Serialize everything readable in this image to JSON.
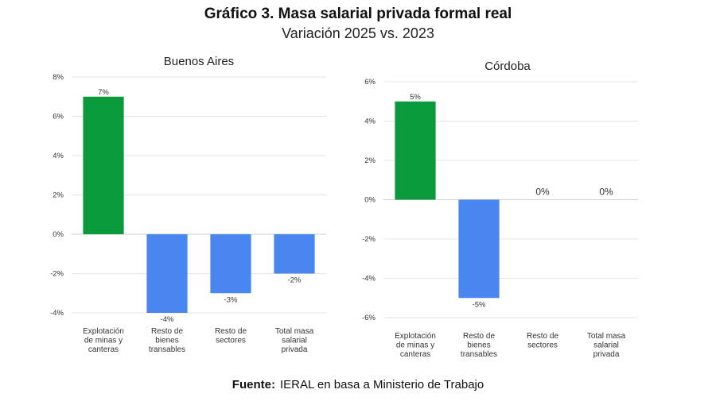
{
  "header": {
    "title": "Gráfico 3. Masa salarial privada formal real",
    "subtitle": "Variación 2025 vs. 2023"
  },
  "footer": {
    "source_label": "Fuente:",
    "source_text": "IERAL en basa a Ministerio de Trabajo"
  },
  "colors": {
    "positive": "#0a9a3c",
    "negative": "#4a86f0",
    "grid": "#e6e6e6",
    "axis": "#cfcfcf"
  },
  "chart_data": [
    {
      "type": "bar",
      "title": "Buenos Aires",
      "categories": [
        [
          "Explotación",
          "de minas y",
          "canteras"
        ],
        [
          "Resto de",
          "bienes",
          "transables"
        ],
        [
          "Resto de",
          "sectores"
        ],
        [
          "Total masa",
          "salarial",
          "privada"
        ]
      ],
      "values": [
        7,
        -4,
        -3,
        -2
      ],
      "data_labels": [
        "7%",
        "-4%",
        "-3%",
        "-2%"
      ],
      "ylim": [
        -4,
        8
      ],
      "yticks": [
        8,
        6,
        4,
        2,
        0,
        -2,
        -4
      ],
      "ytick_labels": [
        "8%",
        "6%",
        "4%",
        "2%",
        "0%",
        "-2%",
        "-4%"
      ],
      "grid": true
    },
    {
      "type": "bar",
      "title": "Córdoba",
      "categories": [
        [
          "Explotación",
          "de minas y",
          "canteras"
        ],
        [
          "Resto de",
          "bienes",
          "transables"
        ],
        [
          "Resto de",
          "sectores"
        ],
        [
          "Total masa",
          "salarial",
          "privada"
        ]
      ],
      "values": [
        5,
        -5,
        0,
        0
      ],
      "data_labels": [
        "5%",
        "-5%",
        "0%",
        "0%"
      ],
      "ylim": [
        -6,
        6
      ],
      "yticks": [
        6,
        4,
        2,
        0,
        -2,
        -4,
        -6
      ],
      "ytick_labels": [
        "6%",
        "4%",
        "2%",
        "0%",
        "-2%",
        "-4%",
        "-6%"
      ],
      "grid": true
    }
  ]
}
